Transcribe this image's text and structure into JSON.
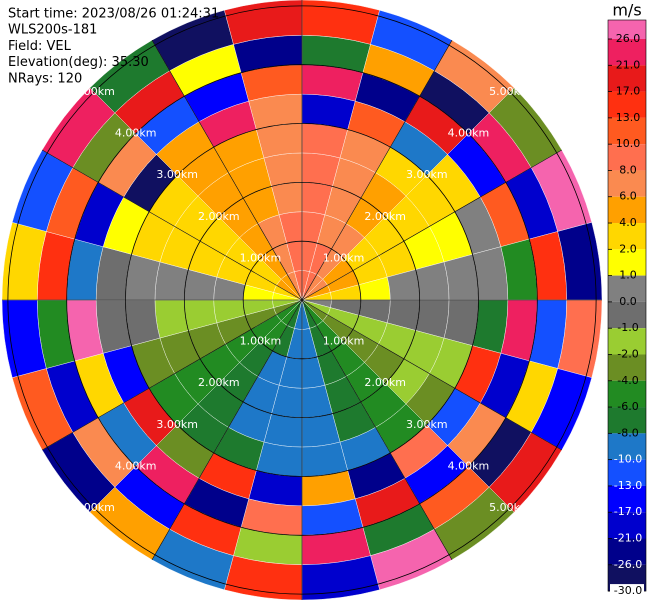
{
  "chart_data": {
    "type": "polar",
    "info": [
      "Start time: 2023/08/26 01:24:31",
      "WLS200s-181",
      "Field: VEL",
      "Elevation(deg): 35.30",
      "NRays: 120"
    ],
    "rlim": [
      0,
      5.1
    ],
    "rticks": [
      {
        "value": 1,
        "label": "1.00km"
      },
      {
        "value": 2,
        "label": "2.00km"
      },
      {
        "value": 3,
        "label": "3.00km"
      },
      {
        "value": 4,
        "label": "4.00km"
      },
      {
        "value": 5,
        "label": "5.00km"
      }
    ],
    "azimuths": [
      0,
      15,
      30,
      45,
      60,
      75,
      90,
      105,
      120,
      135,
      150,
      165,
      180,
      195,
      210,
      225,
      240,
      255,
      270,
      285,
      300,
      315,
      330,
      345
    ],
    "ranges": [
      0,
      0.5,
      1,
      1.5,
      2,
      2.5,
      3,
      3.5,
      4,
      4.5,
      5.1
    ],
    "values": [
      [
        8,
        8,
        8,
        8,
        8,
        9,
        -18,
        24,
        -7,
        15
      ],
      [
        8,
        8,
        7,
        7,
        6,
        6,
        12,
        -25,
        4,
        -11
      ],
      [
        7,
        6,
        6,
        5,
        5,
        3,
        -9,
        19,
        -28,
        7
      ],
      [
        6,
        5,
        3,
        3,
        3,
        3,
        2,
        -14,
        22,
        -3
      ],
      [
        5,
        4,
        3,
        2,
        1,
        1,
        0.5,
        11,
        -19,
        27
      ],
      [
        3,
        2,
        1.5,
        0.5,
        0.5,
        0.5,
        0.5,
        -6,
        14,
        -23
      ],
      [
        0.5,
        -0.5,
        -0.5,
        -0.5,
        -0.5,
        -0.5,
        -7,
        25,
        -12,
        9
      ],
      [
        -1.5,
        -1.5,
        -1.5,
        -1.5,
        -1.5,
        -1.5,
        16,
        -21,
        3,
        -16
      ],
      [
        -3,
        -3,
        -3,
        -3,
        -2,
        -3,
        -11,
        6,
        -27,
        20
      ],
      [
        -5,
        -5,
        -5,
        -5,
        -5,
        -5,
        9,
        -15,
        12,
        -4
      ],
      [
        -7,
        -7,
        -7,
        -7,
        -7,
        -9,
        -24,
        17,
        -8,
        28
      ],
      [
        -9,
        -9,
        -9,
        -9,
        -9,
        -9,
        4,
        -13,
        21,
        -18
      ],
      [
        -9,
        -9,
        -9,
        -9,
        -9,
        -9,
        -19,
        8,
        -2,
        13
      ],
      [
        -7,
        -7,
        -9,
        -9,
        -9,
        -7,
        13,
        -26,
        16,
        -9
      ],
      [
        -6,
        -6,
        -7,
        -7,
        -7,
        -7,
        -3,
        22,
        -15,
        5
      ],
      [
        -5,
        -5,
        -5,
        -5,
        -5,
        -5,
        18,
        -10,
        7,
        -25
      ],
      [
        -3,
        -3,
        -3,
        -3,
        -3,
        -3,
        -14,
        3,
        -21,
        11
      ],
      [
        -1.5,
        -1.5,
        -1.5,
        -1.5,
        -1.5,
        -0.5,
        -0.5,
        26,
        -6,
        -17
      ],
      [
        1.5,
        1.5,
        0.5,
        0.5,
        0.5,
        0.5,
        -0.5,
        -9,
        15,
        2
      ],
      [
        2.5,
        2.5,
        2.5,
        2.5,
        2.5,
        2.5,
        1.5,
        -20,
        10,
        -13
      ],
      [
        4,
        3,
        3,
        3,
        3,
        3,
        -27,
        7,
        -4,
        24
      ],
      [
        5,
        5,
        5,
        5,
        5,
        5,
        5,
        -12,
        19,
        -7
      ],
      [
        7,
        6,
        6,
        5,
        5,
        5,
        21,
        -16,
        1,
        -29
      ],
      [
        8,
        8,
        8,
        7,
        7,
        7,
        7,
        10,
        -24,
        17
      ]
    ],
    "colorbar": {
      "title": "m/s",
      "ticks": [
        {
          "value": 26,
          "label": "26.0"
        },
        {
          "value": 21,
          "label": "21.0"
        },
        {
          "value": 17,
          "label": "17.0"
        },
        {
          "value": 13,
          "label": "13.0"
        },
        {
          "value": 10,
          "label": "10.0"
        },
        {
          "value": 8,
          "label": "8.0"
        },
        {
          "value": 6,
          "label": "6.0"
        },
        {
          "value": 4,
          "label": "4.0"
        },
        {
          "value": 2,
          "label": "2.0"
        },
        {
          "value": 1,
          "label": "1.0"
        },
        {
          "value": 0,
          "label": "0.0"
        },
        {
          "value": -1,
          "label": "-1.0"
        },
        {
          "value": -2,
          "label": "-2.0"
        },
        {
          "value": -4,
          "label": "-4.0"
        },
        {
          "value": -6,
          "label": "-6.0"
        },
        {
          "value": -8,
          "label": "-8.0"
        },
        {
          "value": -10,
          "label": "-10.0"
        },
        {
          "value": -13,
          "label": "-13.0"
        },
        {
          "value": -17,
          "label": "-17.0"
        },
        {
          "value": -21,
          "label": "-21.0"
        },
        {
          "value": -26,
          "label": "-26.0"
        },
        {
          "value": -30,
          "label": "-30.0"
        }
      ],
      "colors": [
        "#f564ae",
        "#ee2060",
        "#e81a1a",
        "#ff3010",
        "#ff5a20",
        "#ff6f4f",
        "#fa8a50",
        "#ffa000",
        "#ffd700",
        "#ffff00",
        "#808080",
        "#6e6e6e",
        "#9acd32",
        "#6b8e23",
        "#228b22",
        "#1e7a2e",
        "#1e78c8",
        "#1450ff",
        "#0000ff",
        "#0000cd",
        "#00008b",
        "#101060"
      ]
    }
  }
}
